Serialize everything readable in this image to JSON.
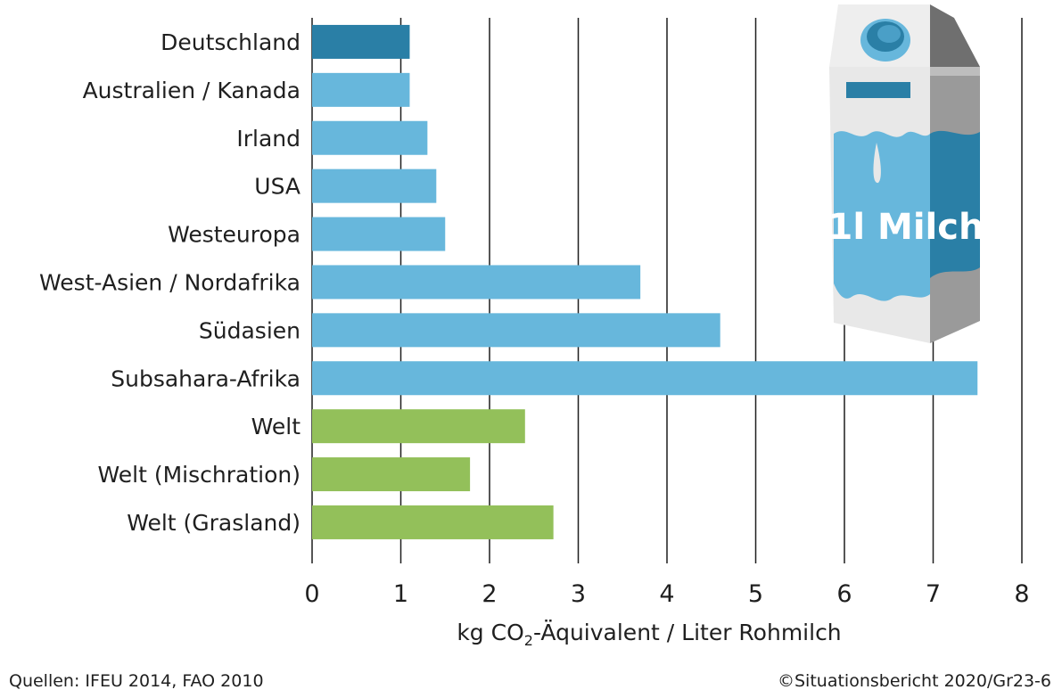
{
  "chart_data": {
    "type": "bar",
    "orientation": "horizontal",
    "categories": [
      "Deutschland",
      "Australien / Kanada",
      "Irland",
      "USA",
      "Westeuropa",
      "West-Asien / Nordafrika",
      "Südasien",
      "Subsahara-Afrika",
      "Welt",
      "Welt (Mischration)",
      "Welt (Grasland)"
    ],
    "values": [
      1.1,
      1.1,
      1.3,
      1.4,
      1.5,
      3.7,
      4.6,
      7.5,
      2.4,
      1.78,
      2.72
    ],
    "bar_colors": [
      "#2a7fa6",
      "#67b7dc",
      "#67b7dc",
      "#67b7dc",
      "#67b7dc",
      "#67b7dc",
      "#67b7dc",
      "#67b7dc",
      "#93c05a",
      "#93c05a",
      "#93c05a"
    ],
    "xlim": [
      0,
      8
    ],
    "xticks": [
      "0",
      "1",
      "2",
      "3",
      "4",
      "5",
      "6",
      "7",
      "8"
    ],
    "xlabel_prefix": "kg CO",
    "xlabel_sub": "2",
    "xlabel_suffix": "-Äquivalent / Liter Rohmilch",
    "grid": "vertical"
  },
  "illustration": {
    "label": "1l Milch",
    "colors": {
      "carton_light": "#e8e8e8",
      "carton_dark": "#9a9a9a",
      "milk_blue": "#67b7dc",
      "milk_blue_dark": "#2a7fa6"
    }
  },
  "footer": {
    "source": "Quellen: IFEU 2014, FAO 2010",
    "copyright": "©Situationsbericht 2020/Gr23-6"
  }
}
